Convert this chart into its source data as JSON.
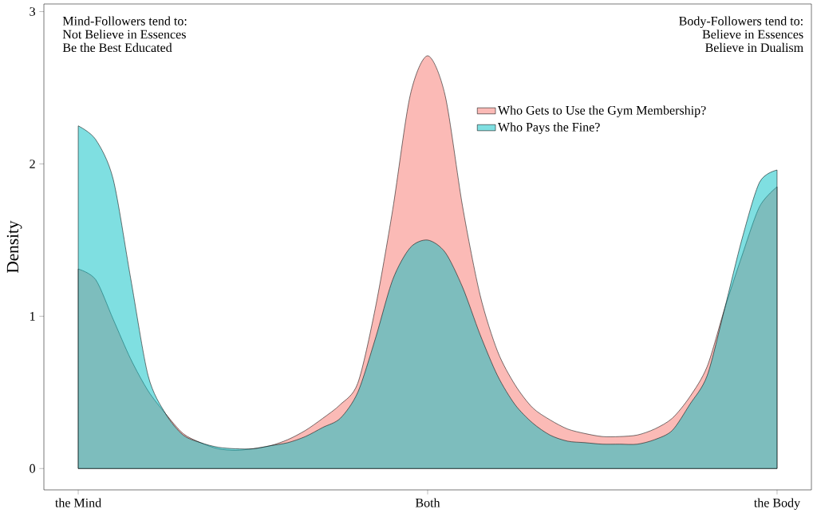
{
  "chart_data": {
    "type": "area",
    "ylabel": "Density",
    "categories": [
      "the Mind",
      null,
      null,
      null,
      null,
      null,
      null,
      null,
      null,
      null,
      null,
      null,
      null,
      null,
      null,
      null,
      null,
      null,
      null,
      null,
      "Both",
      null,
      null,
      null,
      null,
      null,
      null,
      null,
      null,
      null,
      null,
      null,
      null,
      null,
      null,
      null,
      null,
      null,
      null,
      null,
      "the Body"
    ],
    "ylim": [
      -0.14,
      3.05
    ],
    "yticks": [
      0,
      1,
      2,
      3
    ],
    "grid": false,
    "legend": "top right",
    "annotations": [
      "Mind-Followers tend to:",
      "Not Believe in Essences",
      "Be the Best Educated",
      "Body-Followers tend to:",
      "Believe in Essences",
      "Believe in Dualism"
    ],
    "series": [
      {
        "name": "Who Gets to Use the Gym Membership?",
        "color": "#f8766d",
        "values": [
          1.31,
          1.24,
          0.98,
          0.72,
          0.51,
          0.36,
          0.23,
          0.17,
          0.13,
          0.12,
          0.13,
          0.15,
          0.19,
          0.25,
          0.33,
          0.42,
          0.56,
          1.05,
          1.7,
          2.45,
          2.71,
          2.45,
          1.72,
          1.14,
          0.77,
          0.55,
          0.4,
          0.32,
          0.26,
          0.23,
          0.21,
          0.21,
          0.22,
          0.26,
          0.33,
          0.47,
          0.67,
          1.05,
          1.4,
          1.72,
          1.85
        ]
      },
      {
        "name": "Who Pays the Fine?",
        "color": "#00bfc4",
        "values": [
          2.25,
          2.16,
          1.9,
          1.25,
          0.61,
          0.36,
          0.22,
          0.17,
          0.14,
          0.13,
          0.13,
          0.15,
          0.17,
          0.21,
          0.27,
          0.33,
          0.5,
          0.85,
          1.24,
          1.45,
          1.5,
          1.42,
          1.19,
          0.88,
          0.61,
          0.42,
          0.3,
          0.22,
          0.18,
          0.17,
          0.16,
          0.16,
          0.16,
          0.19,
          0.25,
          0.42,
          0.61,
          1.05,
          1.51,
          1.88,
          1.96
        ]
      }
    ]
  }
}
